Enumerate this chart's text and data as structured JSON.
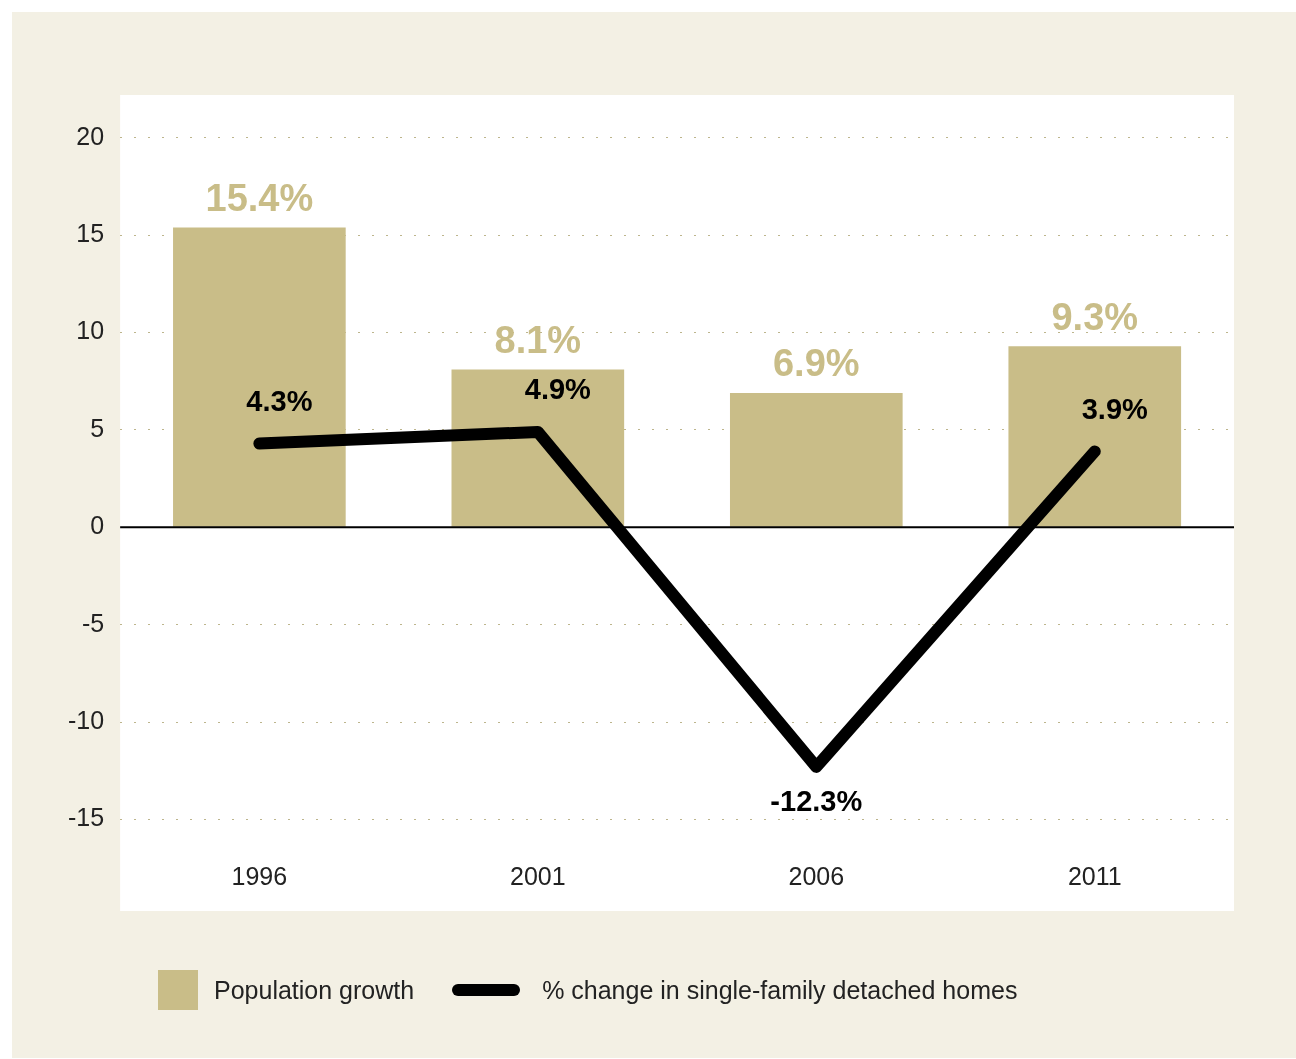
{
  "chart_data": {
    "type": "bar",
    "categories": [
      "1996",
      "2001",
      "2006",
      "2011"
    ],
    "series": [
      {
        "name": "Population growth",
        "color": "#c9bd88",
        "values": [
          15.4,
          8.1,
          6.9,
          9.3
        ],
        "value_labels": [
          "15.4%",
          "8.1%",
          "6.9%",
          "9.3%"
        ]
      },
      {
        "name": "% change in single-family detached homes",
        "type": "line",
        "color": "#000000",
        "values": [
          4.3,
          4.9,
          -12.3,
          3.9
        ],
        "value_labels": [
          "4.3%",
          "4.9%",
          "-12.3%",
          "3.9%"
        ]
      }
    ],
    "ylim": [
      -19.7,
      22.2
    ],
    "yticks": [
      -15,
      -10,
      -5,
      0,
      5,
      10,
      15,
      20
    ],
    "grid": "y",
    "legend": "bottom left"
  }
}
